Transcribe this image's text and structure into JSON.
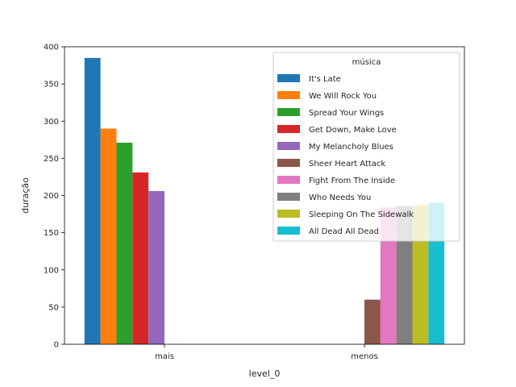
{
  "chart_data": {
    "type": "bar",
    "title": "",
    "xlabel": "level_0",
    "ylabel": "duração",
    "categories": [
      "mais",
      "menos"
    ],
    "ylim": [
      0,
      400
    ],
    "yticks": [
      0,
      50,
      100,
      150,
      200,
      250,
      300,
      350,
      400
    ],
    "grid": false,
    "legend": {
      "title": "música",
      "placement": "top-right"
    },
    "series": [
      {
        "name": "It's Late",
        "color": "#1f77b4",
        "values": [
          385,
          null
        ]
      },
      {
        "name": "We Will Rock You",
        "color": "#ff7f0e",
        "values": [
          290,
          null
        ]
      },
      {
        "name": "Spread Your Wings",
        "color": "#2ca02c",
        "values": [
          271,
          null
        ]
      },
      {
        "name": "Get Down, Make Love",
        "color": "#d62728",
        "values": [
          231,
          null
        ]
      },
      {
        "name": "My Melancholy Blues",
        "color": "#9467bd",
        "values": [
          206,
          null
        ]
      },
      {
        "name": "Sheer Heart Attack",
        "color": "#8c564b",
        "values": [
          null,
          60
        ]
      },
      {
        "name": "Fight From The Inside",
        "color": "#e377c2",
        "values": [
          null,
          184
        ]
      },
      {
        "name": "Who Needs You",
        "color": "#7f7f7f",
        "values": [
          null,
          186
        ]
      },
      {
        "name": "Sleeping On The Sidewalk",
        "color": "#bcbd22",
        "values": [
          null,
          187
        ]
      },
      {
        "name": "All Dead All Dead",
        "color": "#17becf",
        "values": [
          null,
          190
        ]
      }
    ]
  }
}
